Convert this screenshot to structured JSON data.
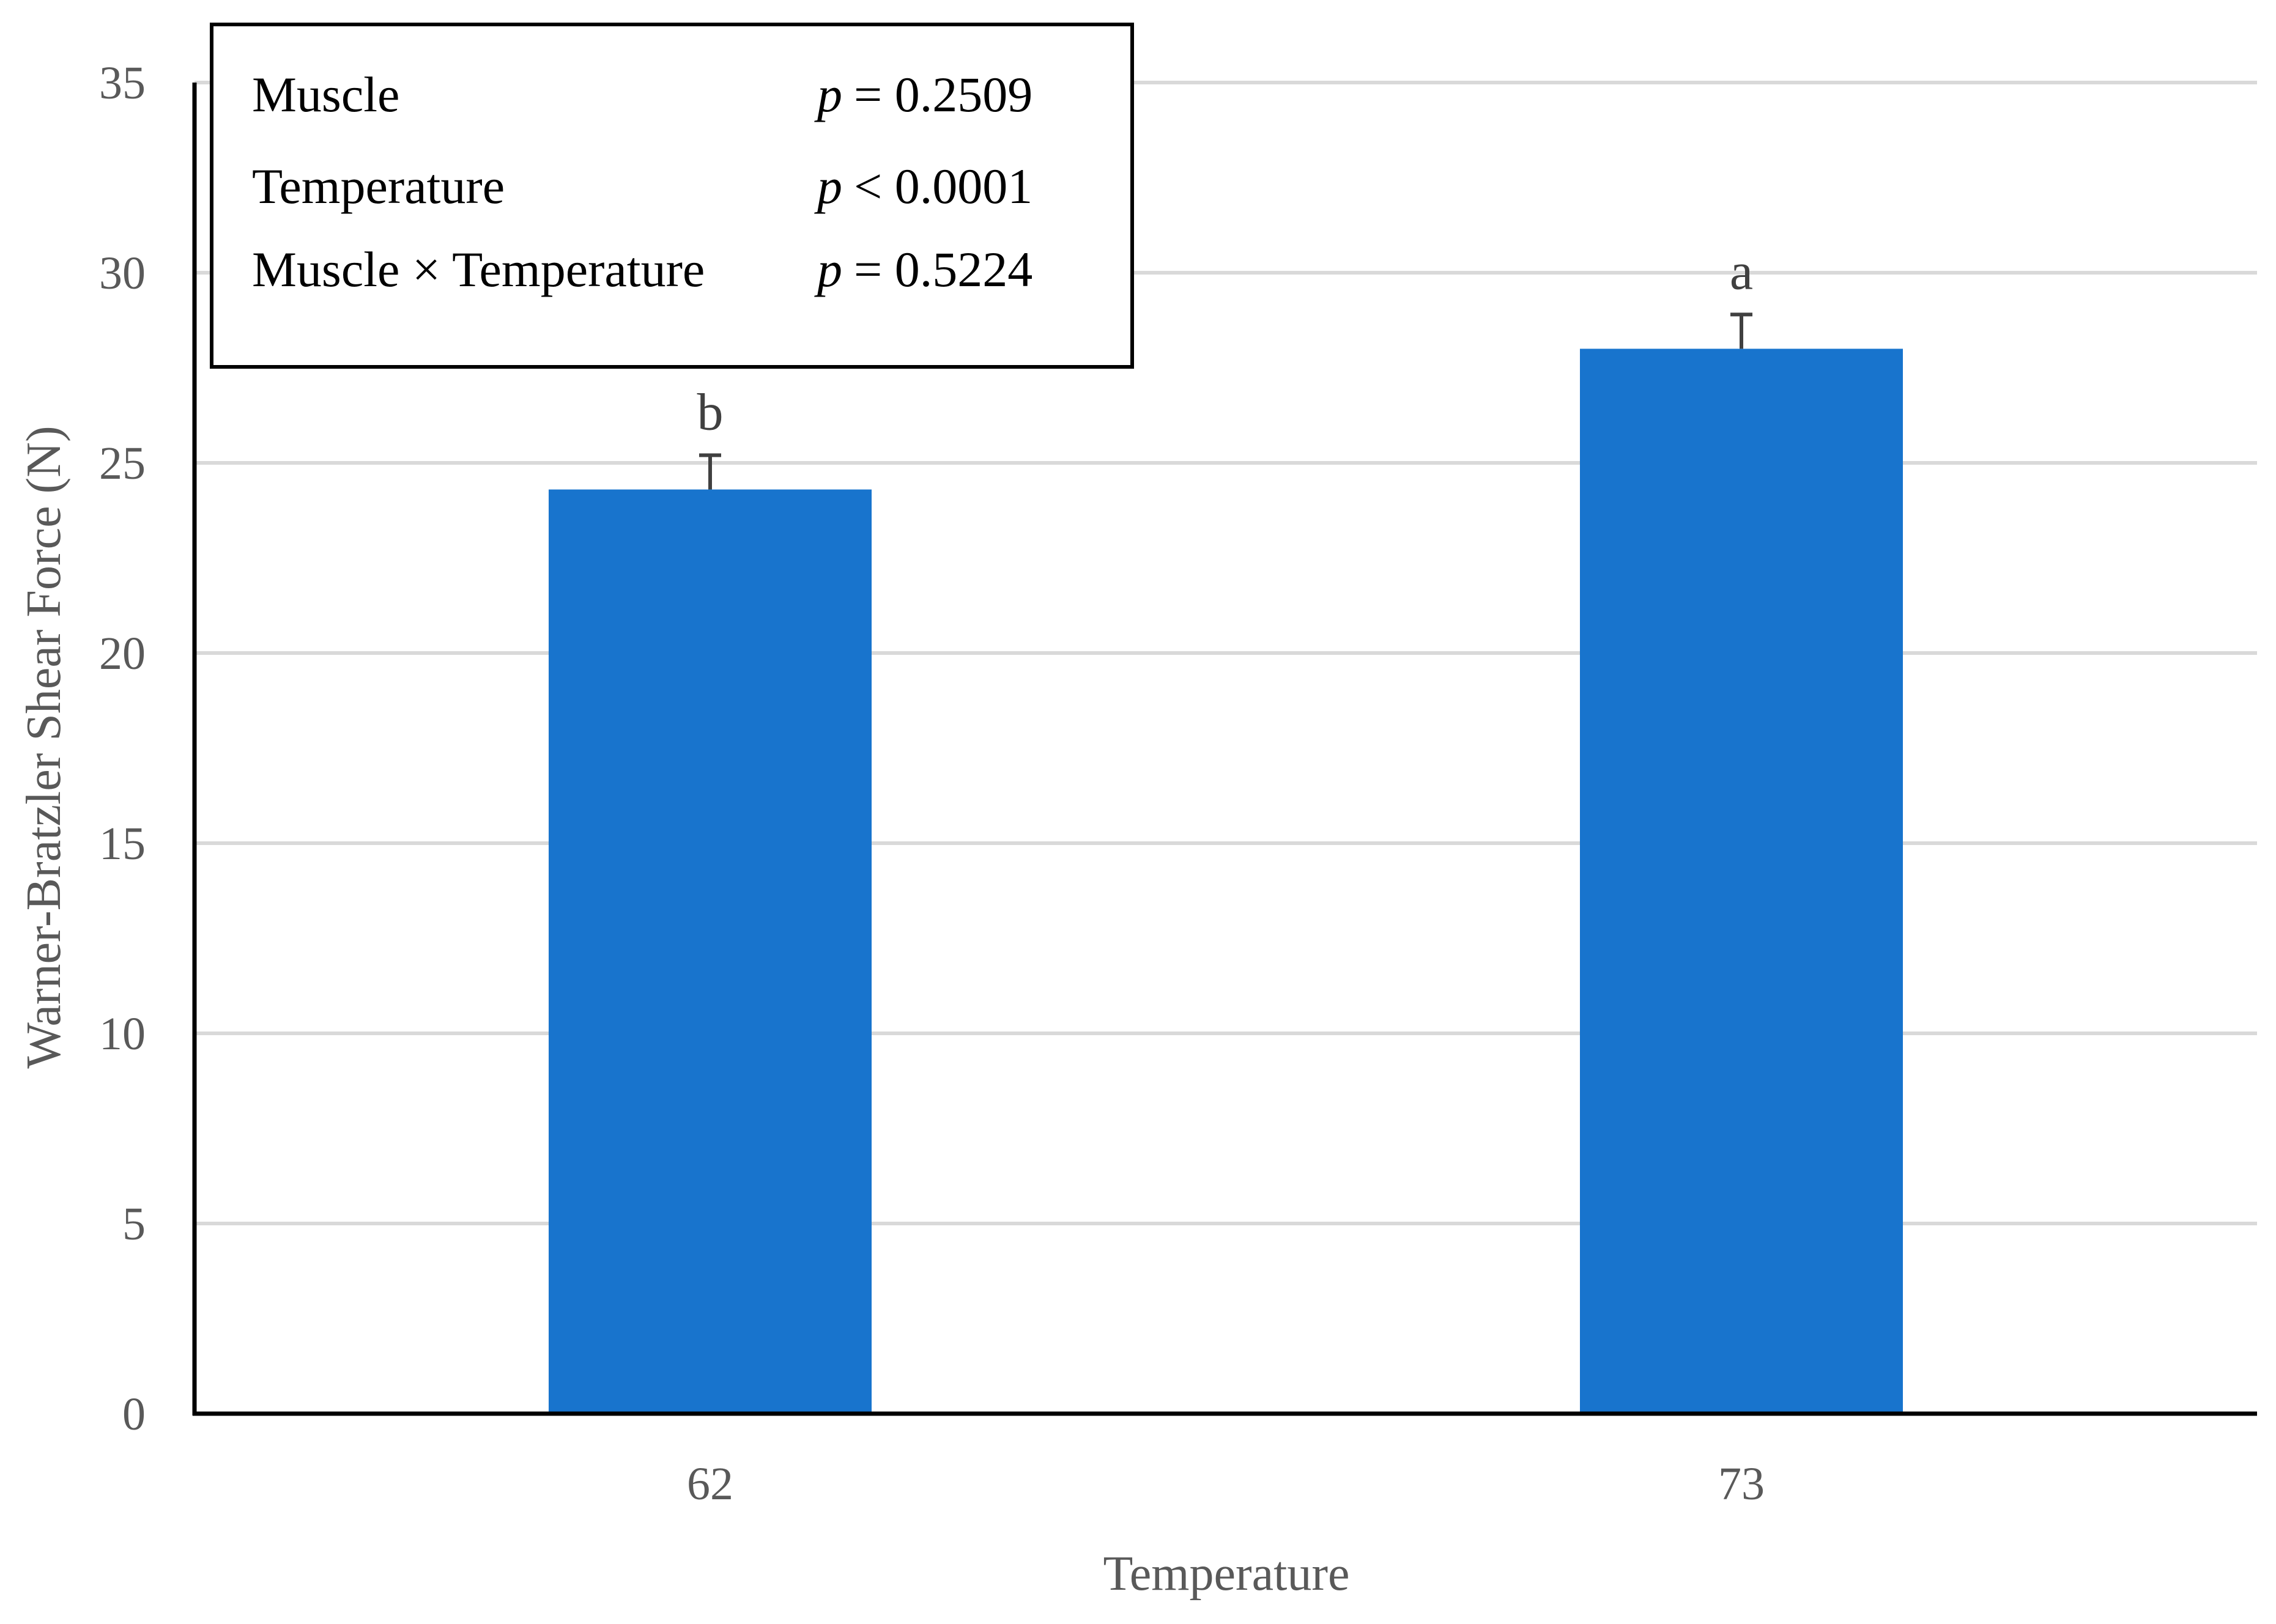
{
  "chart_data": {
    "type": "bar",
    "categories": [
      "62",
      "73"
    ],
    "values": [
      24.3,
      28.0
    ],
    "error_upper": [
      25.2,
      28.9
    ],
    "significance_letters": [
      "b",
      "a"
    ],
    "xlabel": "Temperature",
    "ylabel": "Warner-Bratzler Shear Force (N)",
    "ylim": [
      0,
      35
    ],
    "yticks": [
      0,
      5,
      10,
      15,
      20,
      25,
      30,
      35
    ],
    "grid": true,
    "bar_color": "#1874CD",
    "stats_box": [
      {
        "label": "Muscle",
        "p_symbol": "p",
        "value": "= 0.2509"
      },
      {
        "label": "Temperature",
        "p_symbol": "p",
        "value": "< 0.0001"
      },
      {
        "label": "Muscle × Temperature",
        "p_symbol": "p",
        "value": "= 0.5224"
      }
    ]
  }
}
